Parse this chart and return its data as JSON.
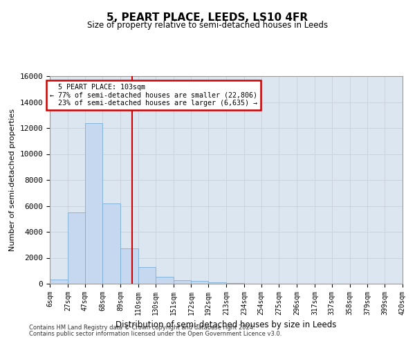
{
  "title": "5, PEART PLACE, LEEDS, LS10 4FR",
  "subtitle": "Size of property relative to semi-detached houses in Leeds",
  "xlabel": "Distribution of semi-detached houses by size in Leeds",
  "ylabel": "Number of semi-detached properties",
  "property_size": 103,
  "property_label": "5 PEART PLACE: 103sqm",
  "pct_smaller": 77,
  "count_smaller": 22806,
  "pct_larger": 23,
  "count_larger": 6635,
  "bin_edges": [
    6,
    27,
    47,
    68,
    89,
    110,
    130,
    151,
    172,
    192,
    213,
    234,
    254,
    275,
    296,
    317,
    337,
    358,
    379,
    399,
    420
  ],
  "bin_labels": [
    "6sqm",
    "27sqm",
    "47sqm",
    "68sqm",
    "89sqm",
    "110sqm",
    "130sqm",
    "151sqm",
    "172sqm",
    "192sqm",
    "213sqm",
    "234sqm",
    "254sqm",
    "275sqm",
    "296sqm",
    "317sqm",
    "337sqm",
    "358sqm",
    "379sqm",
    "399sqm",
    "420sqm"
  ],
  "bar_values": [
    300,
    5500,
    12400,
    6200,
    2700,
    1300,
    550,
    280,
    200,
    130,
    80,
    0,
    0,
    0,
    0,
    0,
    0,
    0,
    0,
    0
  ],
  "bar_color": "#c5d8ef",
  "bar_edge_color": "#7aafd4",
  "vline_x": 103,
  "vline_color": "#cc0000",
  "annotation_box_color": "#cc0000",
  "grid_color": "#c8d0dc",
  "background_color": "#dce6f0",
  "ylim": [
    0,
    16000
  ],
  "yticks": [
    0,
    2000,
    4000,
    6000,
    8000,
    10000,
    12000,
    14000,
    16000
  ],
  "footer1": "Contains HM Land Registry data © Crown copyright and database right 2024.",
  "footer2": "Contains public sector information licensed under the Open Government Licence v3.0."
}
